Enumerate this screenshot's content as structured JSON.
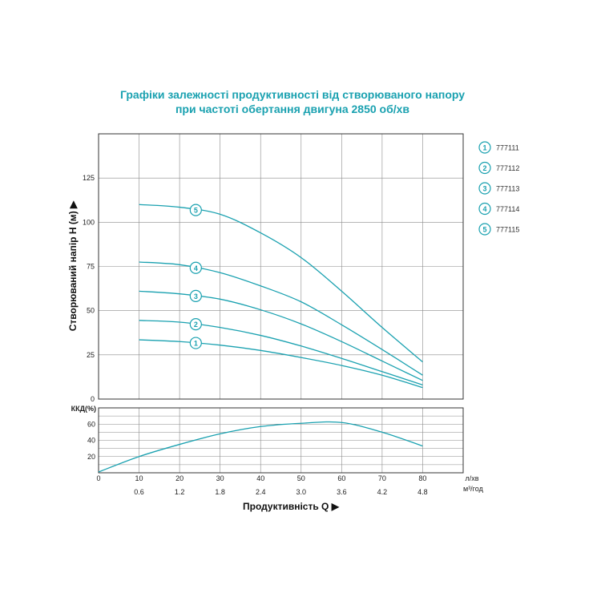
{
  "title_line1": "Графіки залежності продуктивності від створюваного напору",
  "title_line2": "при частоті обертання двигуна 2850 об/хв",
  "colors": {
    "curve": "#1aa1b0",
    "grid": "#8a8a8a",
    "axis": "#333333"
  },
  "chart_data": [
    {
      "type": "line",
      "title": "Графіки залежності продуктивності від створюваного напору при частоті обертання двигуна 2850 об/хв",
      "ylabel": "Створюваний напір H (м)",
      "xlabel": "Продуктивність Q",
      "x_unit_primary": "л/хв",
      "x_unit_secondary": "м³/год",
      "xlim": [
        0,
        90
      ],
      "ylim": [
        0,
        150
      ],
      "y_ticks": [
        0,
        25,
        50,
        75,
        100,
        125
      ],
      "x_ticks": [
        0,
        10,
        20,
        30,
        40,
        50,
        60,
        70,
        80
      ],
      "x_ticks_secondary": [
        "0.6",
        "1.2",
        "1.8",
        "2.4",
        "3.0",
        "3.6",
        "4.2",
        "4.8"
      ],
      "grid": true,
      "legend_position": "right",
      "series": [
        {
          "name": "777111",
          "marker": "1",
          "x": [
            10,
            20,
            30,
            40,
            50,
            60,
            70,
            80
          ],
          "values": [
            33.5,
            32.5,
            30.5,
            27.5,
            23.5,
            19,
            13.5,
            6.5
          ]
        },
        {
          "name": "777112",
          "marker": "2",
          "x": [
            10,
            20,
            30,
            40,
            50,
            60,
            70,
            80
          ],
          "values": [
            44.5,
            43.5,
            40.5,
            36,
            30,
            23,
            15.5,
            8
          ]
        },
        {
          "name": "777113",
          "marker": "3",
          "x": [
            10,
            20,
            30,
            40,
            50,
            60,
            70,
            80
          ],
          "values": [
            61,
            59.5,
            56.5,
            50.5,
            42.5,
            32.5,
            21.5,
            10.5
          ]
        },
        {
          "name": "777114",
          "marker": "4",
          "x": [
            10,
            20,
            30,
            40,
            50,
            60,
            70,
            80
          ],
          "values": [
            77.5,
            76,
            71.5,
            64,
            55,
            42,
            28,
            13.5
          ]
        },
        {
          "name": "777115",
          "marker": "5",
          "x": [
            10,
            20,
            30,
            40,
            50,
            60,
            70,
            80
          ],
          "values": [
            110,
            108.5,
            104.5,
            94,
            80,
            61,
            40.5,
            21
          ]
        }
      ]
    },
    {
      "type": "line",
      "ylabel": "ККД(%)",
      "xlim": [
        0,
        90
      ],
      "ylim": [
        0,
        80
      ],
      "y_ticks": [
        0,
        20,
        40,
        60
      ],
      "grid": true,
      "series": [
        {
          "x": [
            0,
            10,
            20,
            30,
            40,
            50,
            60,
            70,
            80
          ],
          "values": [
            1,
            20,
            35,
            48,
            57,
            61,
            62,
            50,
            33
          ]
        }
      ]
    }
  ]
}
